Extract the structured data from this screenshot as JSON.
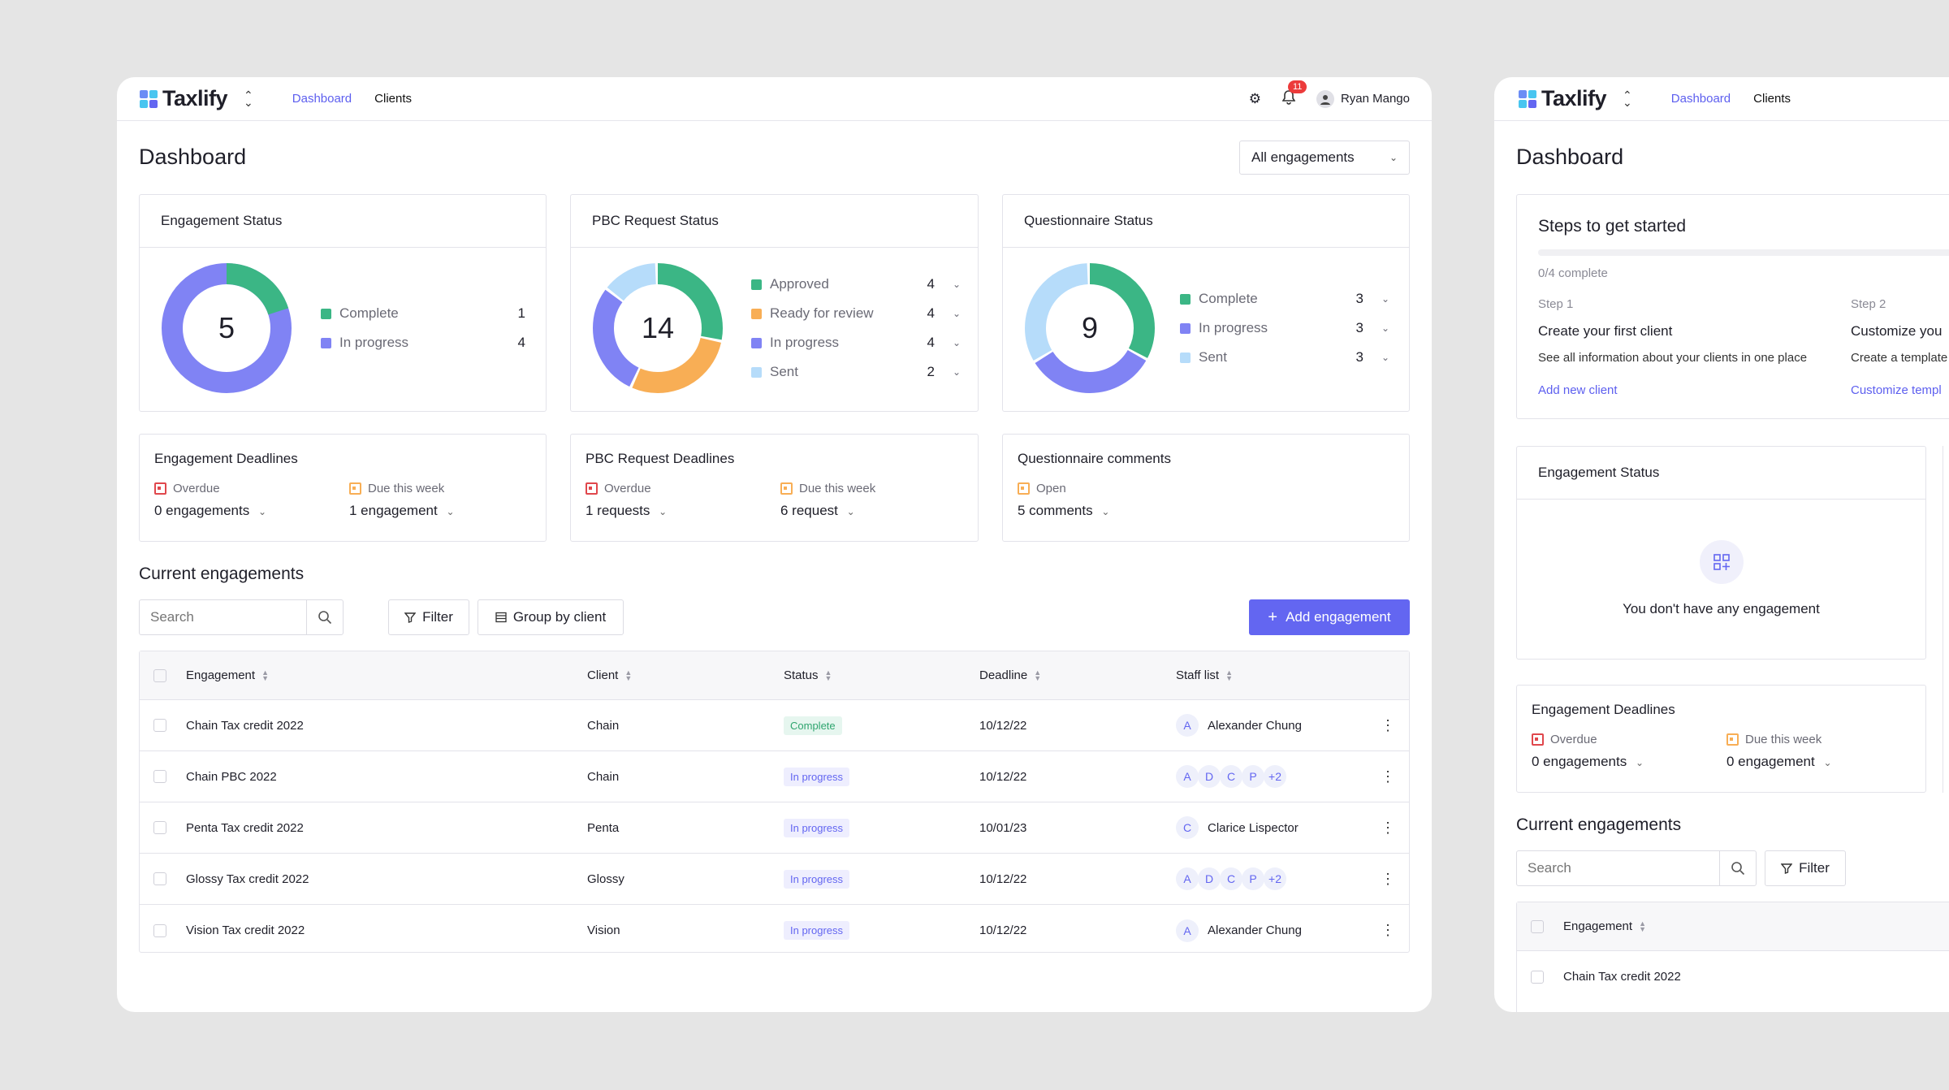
{
  "app": {
    "name": "Taxlify",
    "nav": [
      "Dashboard",
      "Clients"
    ],
    "user": "Ryan Mango",
    "notifications": "11"
  },
  "colors": {
    "green": "#3bb685",
    "indigo": "#8083f4",
    "orange": "#f8ae55",
    "lightblue": "#b6dcfa",
    "accent": "#6366f1",
    "red": "#e0474c"
  },
  "dashboard": {
    "title": "Dashboard",
    "filter": "All engagements"
  },
  "engagement_status": {
    "title": "Engagement Status",
    "total": "5",
    "items": [
      {
        "label": "Complete",
        "value": "1"
      },
      {
        "label": "In progress",
        "value": "4"
      }
    ]
  },
  "pbc_status": {
    "title": "PBC Request Status",
    "total": "14",
    "items": [
      {
        "label": "Approved",
        "value": "4"
      },
      {
        "label": "Ready for review",
        "value": "4"
      },
      {
        "label": "In progress",
        "value": "4"
      },
      {
        "label": "Sent",
        "value": "2"
      }
    ]
  },
  "questionnaire_status": {
    "title": "Questionnaire Status",
    "total": "9",
    "items": [
      {
        "label": "Complete",
        "value": "3"
      },
      {
        "label": "In progress",
        "value": "3"
      },
      {
        "label": "Sent",
        "value": "3"
      }
    ]
  },
  "engagement_deadlines": {
    "title": "Engagement Deadlines",
    "overdue_label": "Overdue",
    "overdue_value": "0 engagements",
    "due_label": "Due this week",
    "due_value": "1 engagement"
  },
  "pbc_deadlines": {
    "title": "PBC Request Deadlines",
    "overdue_label": "Overdue",
    "overdue_value": "1 requests",
    "due_label": "Due this week",
    "due_value": "6 request"
  },
  "questionnaire_comments": {
    "title": "Questionnaire comments",
    "open_label": "Open",
    "open_value": "5 comments"
  },
  "current": {
    "title": "Current engagements",
    "search_placeholder": "Search",
    "filter": "Filter",
    "group": "Group by client",
    "add": "Add engagement",
    "columns": [
      "Engagement",
      "Client",
      "Status",
      "Deadline",
      "Staff list"
    ],
    "rows": [
      {
        "engagement": "Chain Tax credit 2022",
        "client": "Chain",
        "status": "Complete",
        "deadline": "10/12/22",
        "staff_avatars": [
          "A"
        ],
        "staff_name": "Alexander Chung"
      },
      {
        "engagement": "Chain PBC 2022",
        "client": "Chain",
        "status": "In progress",
        "deadline": "10/12/22",
        "staff_avatars": [
          "A",
          "D",
          "C",
          "P",
          "+2"
        ],
        "staff_name": ""
      },
      {
        "engagement": "Penta Tax credit 2022",
        "client": "Penta",
        "status": "In progress",
        "deadline": "10/01/23",
        "staff_avatars": [
          "C"
        ],
        "staff_name": "Clarice Lispector"
      },
      {
        "engagement": "Glossy Tax credit 2022",
        "client": "Glossy",
        "status": "In progress",
        "deadline": "10/12/22",
        "staff_avatars": [
          "A",
          "D",
          "C",
          "P",
          "+2"
        ],
        "staff_name": ""
      },
      {
        "engagement": "Vision Tax credit 2022",
        "client": "Vision",
        "status": "In progress",
        "deadline": "10/12/22",
        "staff_avatars": [
          "A"
        ],
        "staff_name": "Alexander Chung"
      }
    ]
  },
  "second": {
    "steps_title": "Steps to get started",
    "progress": "0/4 complete",
    "step1_label": "Step 1",
    "step1_title": "Create your first client",
    "step1_desc": "See all information about your clients in one place",
    "step1_link": "Add new client",
    "step2_label": "Step 2",
    "step2_title": "Customize you",
    "step2_desc": "Create a template",
    "step2_link": "Customize templ",
    "eng_status_title": "Engagement Status",
    "empty": "You don't have any engagement",
    "deadlines_title": "Engagement Deadlines",
    "overdue_label": "Overdue",
    "overdue_value": "0 engagements",
    "due_label": "Due this week",
    "due_value": "0 engagement",
    "current_title": "Current engagements",
    "search_placeholder": "Search",
    "filter": "Filter",
    "col_engagement": "Engagement",
    "row1": "Chain Tax credit 2022"
  }
}
